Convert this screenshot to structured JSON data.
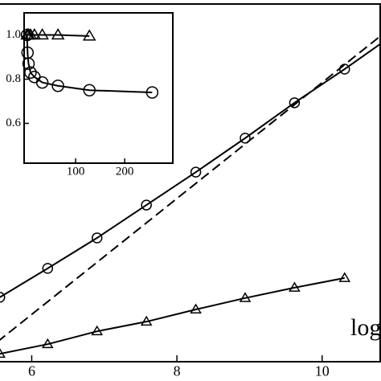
{
  "chart_data": [
    {
      "type": "line",
      "x_label": "log",
      "xlim": [
        5.53,
        10.8
      ],
      "ylim": [
        0,
        10
      ],
      "xticks": [
        6,
        8,
        10
      ],
      "series": [
        {
          "color": "#000000",
          "marker": "circle",
          "dash": false,
          "x": [
            5.56,
            6.22,
            6.9,
            7.58,
            8.26,
            8.94,
            9.62,
            10.31,
            10.8
          ],
          "values": [
            1.8,
            2.61,
            3.46,
            4.38,
            5.3,
            6.25,
            7.24,
            8.18,
            8.88
          ],
          "markers_shown": 8
        },
        {
          "color": "#000000",
          "marker": "triangle",
          "dash": false,
          "x": [
            5.56,
            6.22,
            6.9,
            7.58,
            8.26,
            8.94,
            9.62,
            10.31
          ],
          "values": [
            0.22,
            0.49,
            0.85,
            1.12,
            1.46,
            1.78,
            2.07,
            2.34
          ]
        },
        {
          "color": "#000000",
          "marker": "none",
          "dash": true,
          "x": [
            5.53,
            10.8
          ],
          "values": [
            0.56,
            9.1
          ]
        }
      ]
    },
    {
      "type": "line",
      "xlim": [
        -5,
        298
      ],
      "ylim": [
        0.42,
        1.1
      ],
      "xticks": [
        100,
        200
      ],
      "yticks": [
        0.6,
        0.8,
        {
          "value": 1,
          "label": "1.0"
        }
      ],
      "series": [
        {
          "color": "#000000",
          "marker": "circle",
          "dash": false,
          "x": [
            1,
            2,
            4,
            8,
            16,
            32,
            64,
            128,
            256
          ],
          "values": [
            1.0,
            0.92,
            0.87,
            0.83,
            0.81,
            0.785,
            0.77,
            0.75,
            0.74
          ]
        },
        {
          "color": "#000000",
          "marker": "triangle",
          "dash": false,
          "x": [
            1,
            2,
            4,
            8,
            16,
            32,
            64,
            128
          ],
          "values": [
            1.0,
            1.0,
            1.0,
            1.0,
            1.0,
            1.0,
            1.0,
            0.995
          ]
        }
      ]
    }
  ]
}
